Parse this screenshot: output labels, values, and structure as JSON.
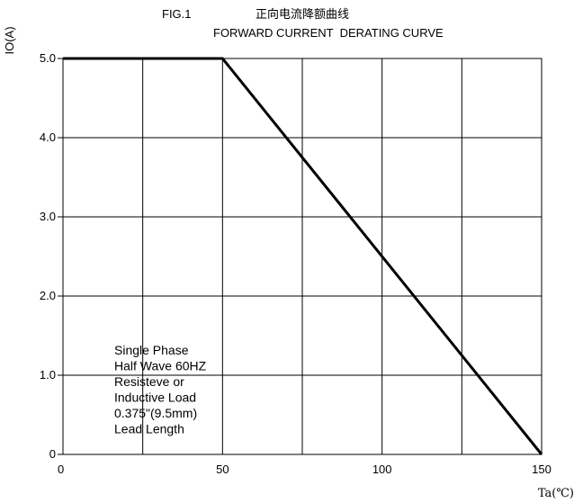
{
  "chart_data": {
    "type": "line",
    "fig_label": "FIG.1",
    "title_cn": "正向电流降额曲线",
    "title": "FORWARD CURRENT  DERATING CURVE",
    "ylabel": "IO(A)",
    "xlabel": "Ta(℃)",
    "xlim": [
      0,
      150
    ],
    "ylim": [
      0,
      5
    ],
    "grid": true,
    "x_ticks": [
      {
        "value": 0,
        "label": "0"
      },
      {
        "value": 50,
        "label": "50"
      },
      {
        "value": 100,
        "label": "100"
      },
      {
        "value": 150,
        "label": "150"
      }
    ],
    "y_ticks": [
      {
        "value": 0,
        "label": "0"
      },
      {
        "value": 1,
        "label": "1.0"
      },
      {
        "value": 2,
        "label": "2.0"
      },
      {
        "value": 3,
        "label": "3.0"
      },
      {
        "value": 4,
        "label": "4.0"
      },
      {
        "value": 5,
        "label": "5.0"
      }
    ],
    "x_grid": [
      25,
      50,
      75,
      100,
      125
    ],
    "y_grid": [
      1,
      2,
      3,
      4
    ],
    "series": [
      {
        "x": [
          0,
          50,
          150
        ],
        "y": [
          5,
          5,
          0
        ],
        "color": "#000000"
      }
    ],
    "annotation": [
      "Single Phase",
      "Half Wave 60HZ",
      "Resisteve or",
      "Inductive Load",
      "0.375\"(9.5mm)",
      "Lead Length"
    ]
  }
}
